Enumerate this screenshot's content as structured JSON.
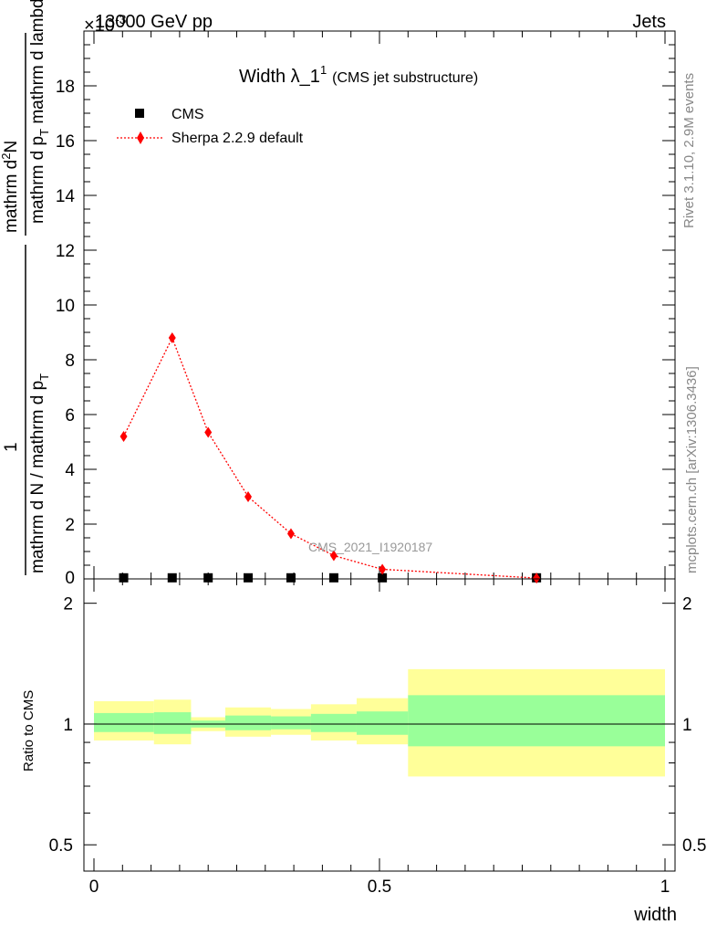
{
  "header": {
    "left": "13000 GeV pp",
    "right": "Jets"
  },
  "side_labels": {
    "rivet": "Rivet 3.1.10,  2.9M events",
    "mcplots": "mcplots.cern.ch [arXiv:1306.3436]"
  },
  "chart_data": [
    {
      "type": "line",
      "title": "Width λ_1",
      "title_sup": "1",
      "subtitle": "(CMS jet substructure)",
      "watermark": "CMS_2021_I1920187",
      "ylabel_numerator": "mathrm d²N",
      "ylabel_numerator_main": "mathrm d",
      "ylabel_numerator_sup": "2",
      "ylabel_numerator_end": "N",
      "ylabel_den_main": "mathrm d p",
      "ylabel_den_sub": "T",
      "ylabel_den_end": " mathrm d lambda",
      "ylabel_prefactor": "1",
      "ylabel_pref_den_main": "mathrm d N / mathrm d p",
      "ylabel_pref_den_sub": "T",
      "ylim": [
        0,
        20
      ],
      "xlim": [
        0,
        1
      ],
      "y_exponent": "×10",
      "y_exponent_power": "-3",
      "y_ticks": [
        "2",
        "4",
        "6",
        "8",
        "10",
        "12",
        "14",
        "16",
        "18"
      ],
      "y_zero_tick": "0",
      "legend_position": "top-left",
      "x_bin_edges": [
        0,
        0.105,
        0.17,
        0.23,
        0.31,
        0.38,
        0.46,
        0.55,
        1.0
      ],
      "series": [
        {
          "name": "CMS",
          "marker": "square",
          "color": "#000000",
          "x": [
            0.052,
            0.137,
            0.2,
            0.27,
            0.345,
            0.42,
            0.505,
            0.775
          ],
          "y": [
            0.04,
            0.04,
            0.04,
            0.04,
            0.04,
            0.04,
            0.04,
            0.04
          ]
        },
        {
          "name": "Sherpa 2.2.9 default",
          "marker": "diamond",
          "line": "dotted",
          "color": "#ff0000",
          "x": [
            0.052,
            0.137,
            0.2,
            0.27,
            0.345,
            0.42,
            0.505,
            0.775
          ],
          "y": [
            5.2,
            8.8,
            5.35,
            3.0,
            1.65,
            0.85,
            0.35,
            0.03
          ]
        }
      ]
    },
    {
      "type": "area",
      "ylabel": "Ratio to CMS",
      "ylim": [
        0.43,
        2.3
      ],
      "y_ticks": [
        "0.5",
        "1",
        "2"
      ],
      "y_tick_values": [
        0.5,
        1,
        2
      ],
      "x_ticks": [
        "0",
        "0.5",
        "1"
      ],
      "x_tick_values": [
        0,
        0.5,
        1
      ],
      "xlabel": "width",
      "bands": {
        "x_edges": [
          0.0,
          0.105,
          0.17,
          0.23,
          0.31,
          0.38,
          0.46,
          0.55,
          1.0
        ],
        "yellow_color": "#ffff99",
        "green_color": "#99ff99",
        "yellow_low": [
          0.91,
          0.89,
          0.96,
          0.93,
          0.94,
          0.91,
          0.89,
          0.74
        ],
        "yellow_high": [
          1.14,
          1.15,
          1.04,
          1.1,
          1.09,
          1.12,
          1.16,
          1.37
        ],
        "green_low": [
          0.955,
          0.945,
          0.98,
          0.965,
          0.97,
          0.955,
          0.94,
          0.88
        ],
        "green_high": [
          1.065,
          1.07,
          1.02,
          1.05,
          1.045,
          1.06,
          1.075,
          1.18
        ]
      },
      "reference_line": 1
    }
  ]
}
